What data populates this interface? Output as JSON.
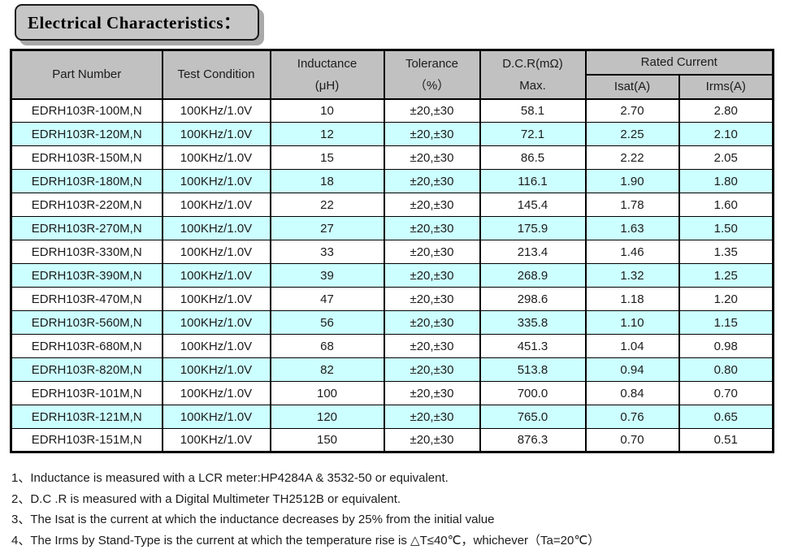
{
  "title": "Electrical Characteristics：",
  "table": {
    "headers": {
      "part_number": "Part Number",
      "test_condition": "Test Condition",
      "inductance_line1": "Inductance",
      "inductance_line2": "(μH)",
      "tolerance_line1": "Tolerance",
      "tolerance_line2": "（%）",
      "dcr_line1": "D.C.R(mΩ)",
      "dcr_line2": "Max.",
      "rated_current": "Rated Current",
      "isat": "Isat(A)",
      "irms": "Irms(A)"
    },
    "column_keys": [
      "part-number",
      "test-condition",
      "inductance-uh",
      "tolerance-pct",
      "dcr-max-mohm",
      "isat-a",
      "irms-a"
    ],
    "rows": [
      [
        "EDRH103R-100M,N",
        "100KHz/1.0V",
        "10",
        "±20,±30",
        "58.1",
        "2.70",
        "2.80"
      ],
      [
        "EDRH103R-120M,N",
        "100KHz/1.0V",
        "12",
        "±20,±30",
        "72.1",
        "2.25",
        "2.10"
      ],
      [
        "EDRH103R-150M,N",
        "100KHz/1.0V",
        "15",
        "±20,±30",
        "86.5",
        "2.22",
        "2.05"
      ],
      [
        "EDRH103R-180M,N",
        "100KHz/1.0V",
        "18",
        "±20,±30",
        "116.1",
        "1.90",
        "1.80"
      ],
      [
        "EDRH103R-220M,N",
        "100KHz/1.0V",
        "22",
        "±20,±30",
        "145.4",
        "1.78",
        "1.60"
      ],
      [
        "EDRH103R-270M,N",
        "100KHz/1.0V",
        "27",
        "±20,±30",
        "175.9",
        "1.63",
        "1.50"
      ],
      [
        "EDRH103R-330M,N",
        "100KHz/1.0V",
        "33",
        "±20,±30",
        "213.4",
        "1.46",
        "1.35"
      ],
      [
        "EDRH103R-390M,N",
        "100KHz/1.0V",
        "39",
        "±20,±30",
        "268.9",
        "1.32",
        "1.25"
      ],
      [
        "EDRH103R-470M,N",
        "100KHz/1.0V",
        "47",
        "±20,±30",
        "298.6",
        "1.18",
        "1.20"
      ],
      [
        "EDRH103R-560M,N",
        "100KHz/1.0V",
        "56",
        "±20,±30",
        "335.8",
        "1.10",
        "1.15"
      ],
      [
        "EDRH103R-680M,N",
        "100KHz/1.0V",
        "68",
        "±20,±30",
        "451.3",
        "1.04",
        "0.98"
      ],
      [
        "EDRH103R-820M,N",
        "100KHz/1.0V",
        "82",
        "±20,±30",
        "513.8",
        "0.94",
        "0.80"
      ],
      [
        "EDRH103R-101M,N",
        "100KHz/1.0V",
        "100",
        "±20,±30",
        "700.0",
        "0.84",
        "0.70"
      ],
      [
        "EDRH103R-121M,N",
        "100KHz/1.0V",
        "120",
        "±20,±30",
        "765.0",
        "0.76",
        "0.65"
      ],
      [
        "EDRH103R-151M,N",
        "100KHz/1.0V",
        "150",
        "±20,±30",
        "876.3",
        "0.70",
        "0.51"
      ]
    ]
  },
  "notes": [
    "1、Inductance is measured with a LCR meter:HP4284A & 3532-50 or equivalent.",
    "2、D.C .R is measured with a Digital Multimeter TH2512B or equivalent.",
    "3、The Isat is the current at which the inductance decreases by 25% from the initial value",
    "4、The Irms by Stand-Type is the current at which the temperature rise is △T≤40℃，whichever（Ta=20℃）"
  ],
  "colors": {
    "header_bg": "#c1c1c1",
    "alt_row_bg": "#ccffff",
    "title_box_bg": "#c6c6c6",
    "border": "#000000"
  }
}
